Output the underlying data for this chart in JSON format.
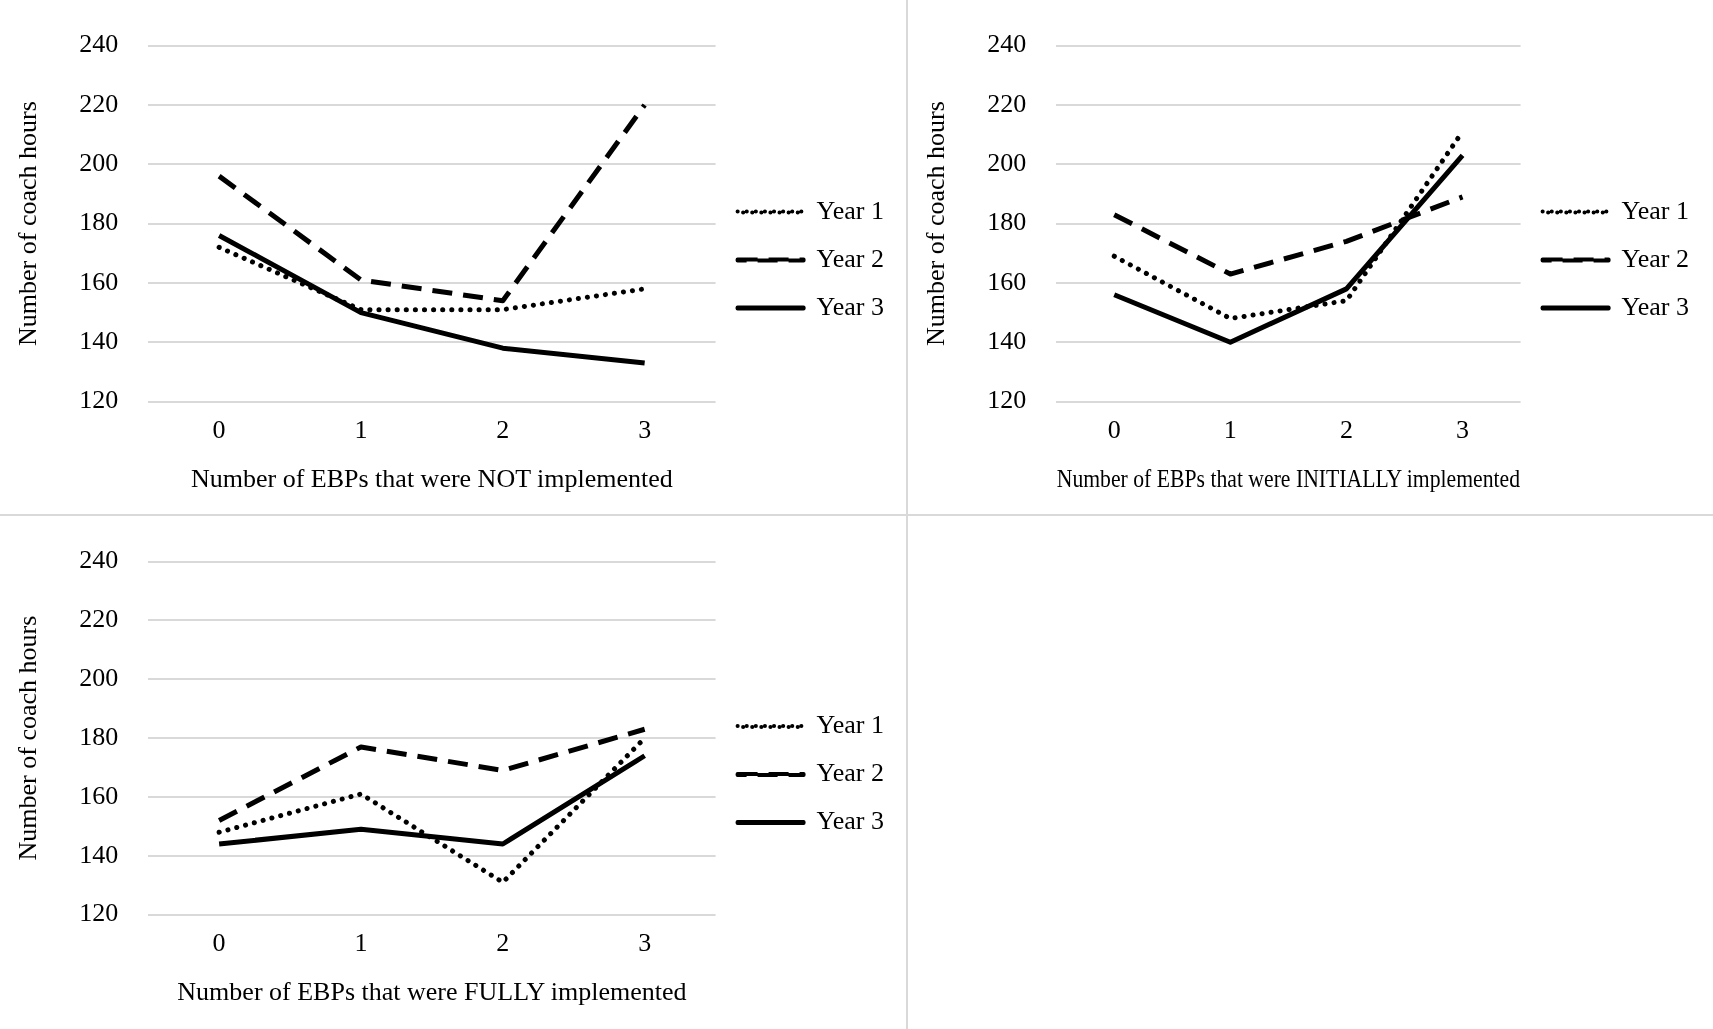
{
  "chart_data": [
    {
      "type": "line",
      "xlabel": "Number of EBPs that were NOT implemented",
      "ylabel": "Number of coach hours",
      "categories": [
        "0",
        "1",
        "2",
        "3"
      ],
      "ylim": [
        120,
        240
      ],
      "yticks": [
        120,
        140,
        160,
        180,
        200,
        220,
        240
      ],
      "grid": "y",
      "legend": "right",
      "series": [
        {
          "name": "Year 1",
          "color": "#000000",
          "line_style": "dotted",
          "values": [
            172,
            151,
            151,
            158
          ]
        },
        {
          "name": "Year 2",
          "color": "#000000",
          "line_style": "dashed",
          "values": [
            196,
            161,
            154,
            220
          ]
        },
        {
          "name": "Year 3",
          "color": "#000000",
          "line_style": "solid",
          "values": [
            176,
            150,
            138,
            133
          ]
        }
      ]
    },
    {
      "type": "line",
      "xlabel": "Number of EBPs that were INITIALLY implemented",
      "ylabel": "Number of coach hours",
      "categories": [
        "0",
        "1",
        "2",
        "3"
      ],
      "ylim": [
        120,
        240
      ],
      "yticks": [
        120,
        140,
        160,
        180,
        200,
        220,
        240
      ],
      "grid": "y",
      "legend": "right",
      "series": [
        {
          "name": "Year 1",
          "color": "#000000",
          "line_style": "dotted",
          "values": [
            169,
            148,
            154,
            211
          ]
        },
        {
          "name": "Year 2",
          "color": "#000000",
          "line_style": "dashed",
          "values": [
            183,
            163,
            174,
            189
          ]
        },
        {
          "name": "Year 3",
          "color": "#000000",
          "line_style": "solid",
          "values": [
            156,
            140,
            158,
            203
          ]
        }
      ]
    },
    {
      "type": "line",
      "xlabel": "Number of EBPs that were FULLY implemented",
      "ylabel": "Number of coach hours",
      "categories": [
        "0",
        "1",
        "2",
        "3"
      ],
      "ylim": [
        120,
        240
      ],
      "yticks": [
        120,
        140,
        160,
        180,
        200,
        220,
        240
      ],
      "grid": "y",
      "legend": "right",
      "series": [
        {
          "name": "Year 1",
          "color": "#000000",
          "line_style": "dotted",
          "values": [
            148,
            161,
            131,
            180
          ]
        },
        {
          "name": "Year 2",
          "color": "#000000",
          "line_style": "dashed",
          "values": [
            152,
            177,
            169,
            183
          ]
        },
        {
          "name": "Year 3",
          "color": "#000000",
          "line_style": "solid",
          "values": [
            144,
            149,
            144,
            174
          ]
        }
      ]
    }
  ]
}
